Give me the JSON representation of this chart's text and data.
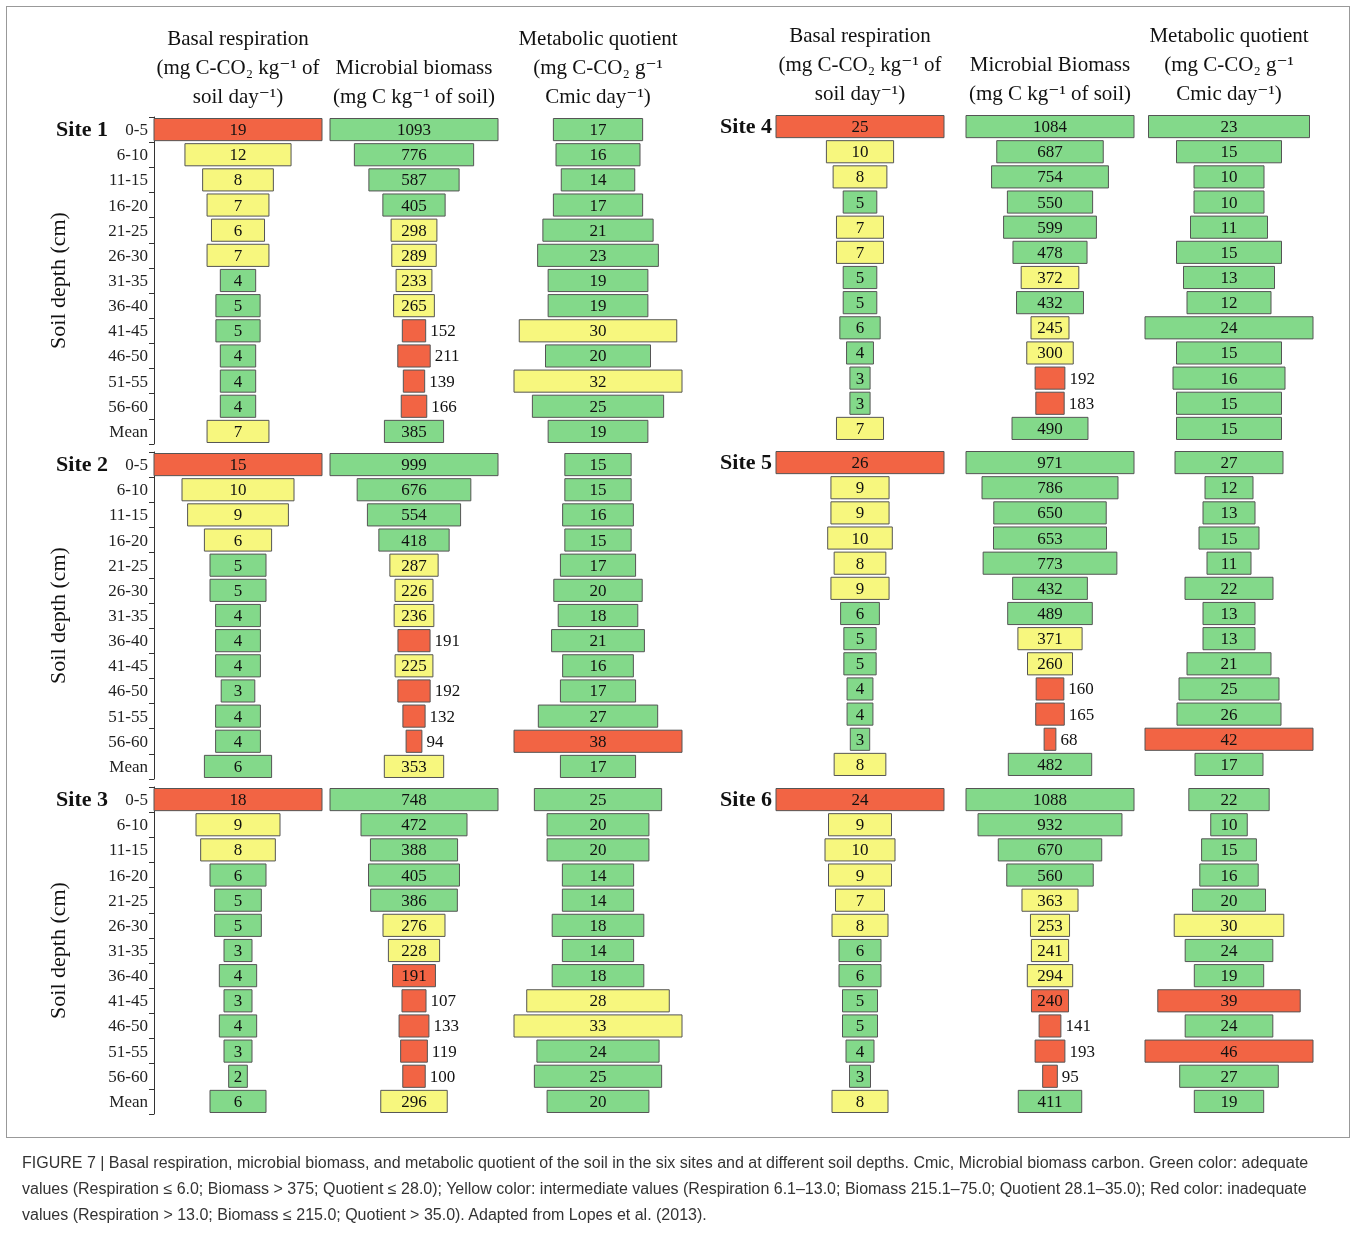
{
  "chart_data": [
    {
      "type": "other",
      "title": "Basal respiration (mg C-CO₂ kg⁻¹ of soil day⁻¹)",
      "subtitle": "Site 1",
      "ylabel": "Soil depth (cm)",
      "data_labels": true,
      "categories": [
        "0-5",
        "6-10",
        "11-15",
        "16-20",
        "21-25",
        "26-30",
        "31-35",
        "36-40",
        "41-45",
        "46-50",
        "51-55",
        "56-60",
        "Mean"
      ],
      "values": [
        19,
        12,
        8,
        7,
        6,
        7,
        4,
        5,
        5,
        4,
        4,
        4,
        7
      ],
      "colors": [
        "#f26444",
        "#f7f77e",
        "#f7f77e",
        "#f7f77e",
        "#f7f77e",
        "#f7f77e",
        "#83d98a",
        "#83d98a",
        "#83d98a",
        "#83d98a",
        "#83d98a",
        "#83d98a",
        "#f7f77e"
      ]
    },
    {
      "type": "other",
      "title": "Microbial biomass (mg C kg⁻¹ of soil)",
      "data_labels": true,
      "categories": [
        null,
        null,
        null,
        null,
        null,
        null,
        null,
        null,
        null,
        null,
        null,
        null,
        null
      ],
      "values": [
        1093,
        776,
        587,
        405,
        298,
        289,
        233,
        265,
        152,
        211,
        139,
        166,
        385
      ],
      "colors": [
        "#83d98a",
        "#83d98a",
        "#83d98a",
        "#83d98a",
        "#f7f77e",
        "#f7f77e",
        "#f7f77e",
        "#f7f77e",
        "#f26444",
        "#f26444",
        "#f26444",
        "#f26444",
        "#83d98a"
      ]
    },
    {
      "type": "other",
      "title": "Metabolic quotient (mg C-CO₂ g⁻¹ Cmic day⁻¹)",
      "data_labels": true,
      "categories": [
        null,
        null,
        null,
        null,
        null,
        null,
        null,
        null,
        null,
        null,
        null,
        null,
        null
      ],
      "values": [
        17,
        16,
        14,
        17,
        21,
        23,
        19,
        19,
        30,
        20,
        32,
        25,
        19
      ],
      "colors": [
        "#83d98a",
        "#83d98a",
        "#83d98a",
        "#83d98a",
        "#83d98a",
        "#83d98a",
        "#83d98a",
        "#83d98a",
        "#f7f77e",
        "#83d98a",
        "#f7f77e",
        "#83d98a",
        "#83d98a"
      ]
    },
    {
      "type": "other",
      "subtitle": "Site 2",
      "ylabel": "Soil depth (cm)",
      "data_labels": true,
      "categories": [
        "0-5",
        "6-10",
        "11-15",
        "16-20",
        "21-25",
        "26-30",
        "31-35",
        "36-40",
        "41-45",
        "46-50",
        "51-55",
        "56-60",
        "Mean"
      ],
      "values": [
        15,
        10,
        9,
        6,
        5,
        5,
        4,
        4,
        4,
        3,
        4,
        4,
        6
      ],
      "colors": [
        "#f26444",
        "#f7f77e",
        "#f7f77e",
        "#f7f77e",
        "#83d98a",
        "#83d98a",
        "#83d98a",
        "#83d98a",
        "#83d98a",
        "#83d98a",
        "#83d98a",
        "#83d98a",
        "#83d98a"
      ]
    },
    {
      "type": "other",
      "data_labels": true,
      "categories": [
        null,
        null,
        null,
        null,
        null,
        null,
        null,
        null,
        null,
        null,
        null,
        null,
        null
      ],
      "values": [
        999,
        676,
        554,
        418,
        287,
        226,
        236,
        191,
        225,
        192,
        132,
        94,
        353
      ],
      "colors": [
        "#83d98a",
        "#83d98a",
        "#83d98a",
        "#83d98a",
        "#f7f77e",
        "#f7f77e",
        "#f7f77e",
        "#f26444",
        "#f7f77e",
        "#f26444",
        "#f26444",
        "#f26444",
        "#f7f77e"
      ]
    },
    {
      "type": "other",
      "data_labels": true,
      "categories": [
        null,
        null,
        null,
        null,
        null,
        null,
        null,
        null,
        null,
        null,
        null,
        null,
        null
      ],
      "values": [
        15,
        15,
        16,
        15,
        17,
        20,
        18,
        21,
        16,
        17,
        27,
        38,
        17
      ],
      "colors": [
        "#83d98a",
        "#83d98a",
        "#83d98a",
        "#83d98a",
        "#83d98a",
        "#83d98a",
        "#83d98a",
        "#83d98a",
        "#83d98a",
        "#83d98a",
        "#83d98a",
        "#f26444",
        "#83d98a"
      ]
    },
    {
      "type": "other",
      "subtitle": "Site 3",
      "ylabel": "Soil depth (cm)",
      "data_labels": true,
      "categories": [
        "0-5",
        "6-10",
        "11-15",
        "16-20",
        "21-25",
        "26-30",
        "31-35",
        "36-40",
        "41-45",
        "46-50",
        "51-55",
        "56-60",
        "Mean"
      ],
      "values": [
        18,
        9,
        8,
        6,
        5,
        5,
        3,
        4,
        3,
        4,
        3,
        2,
        6
      ],
      "colors": [
        "#f26444",
        "#f7f77e",
        "#f7f77e",
        "#83d98a",
        "#83d98a",
        "#83d98a",
        "#83d98a",
        "#83d98a",
        "#83d98a",
        "#83d98a",
        "#83d98a",
        "#83d98a",
        "#83d98a"
      ]
    },
    {
      "type": "other",
      "data_labels": true,
      "categories": [
        null,
        null,
        null,
        null,
        null,
        null,
        null,
        null,
        null,
        null,
        null,
        null,
        null
      ],
      "values": [
        748,
        472,
        388,
        405,
        386,
        276,
        228,
        191,
        107,
        133,
        119,
        100,
        296
      ],
      "colors": [
        "#83d98a",
        "#83d98a",
        "#83d98a",
        "#83d98a",
        "#83d98a",
        "#f7f77e",
        "#f7f77e",
        "#f26444",
        "#f26444",
        "#f26444",
        "#f26444",
        "#f26444",
        "#f7f77e"
      ]
    },
    {
      "type": "other",
      "data_labels": true,
      "categories": [
        null,
        null,
        null,
        null,
        null,
        null,
        null,
        null,
        null,
        null,
        null,
        null,
        null
      ],
      "values": [
        25,
        20,
        20,
        14,
        14,
        18,
        14,
        18,
        28,
        33,
        24,
        25,
        20
      ],
      "colors": [
        "#83d98a",
        "#83d98a",
        "#83d98a",
        "#83d98a",
        "#83d98a",
        "#83d98a",
        "#83d98a",
        "#83d98a",
        "#f7f77e",
        "#f7f77e",
        "#83d98a",
        "#83d98a",
        "#83d98a"
      ]
    },
    {
      "type": "other",
      "title": "Basal respiration (mg C-CO₂ kg⁻¹ of soil day⁻¹)",
      "subtitle": "Site 4",
      "data_labels": true,
      "categories": [
        null,
        null,
        null,
        null,
        null,
        null,
        null,
        null,
        null,
        null,
        null,
        null,
        null
      ],
      "values": [
        25,
        10,
        8,
        5,
        7,
        7,
        5,
        5,
        6,
        4,
        3,
        3,
        7
      ],
      "colors": [
        "#f26444",
        "#f7f77e",
        "#f7f77e",
        "#83d98a",
        "#f7f77e",
        "#f7f77e",
        "#83d98a",
        "#83d98a",
        "#83d98a",
        "#83d98a",
        "#83d98a",
        "#83d98a",
        "#f7f77e"
      ]
    },
    {
      "type": "other",
      "title": "Microbial Biomass (mg C kg⁻¹ of soil)",
      "data_labels": true,
      "categories": [
        null,
        null,
        null,
        null,
        null,
        null,
        null,
        null,
        null,
        null,
        null,
        null,
        null
      ],
      "values": [
        1084,
        687,
        754,
        550,
        599,
        478,
        372,
        432,
        245,
        300,
        192,
        183,
        490
      ],
      "colors": [
        "#83d98a",
        "#83d98a",
        "#83d98a",
        "#83d98a",
        "#83d98a",
        "#83d98a",
        "#f7f77e",
        "#83d98a",
        "#f7f77e",
        "#f7f77e",
        "#f26444",
        "#f26444",
        "#83d98a"
      ]
    },
    {
      "type": "other",
      "title": "Metabolic quotient (mg C-CO₂ g⁻¹ Cmic day⁻¹)",
      "data_labels": true,
      "categories": [
        null,
        null,
        null,
        null,
        null,
        null,
        null,
        null,
        null,
        null,
        null,
        null,
        null
      ],
      "values": [
        23,
        15,
        10,
        10,
        11,
        15,
        13,
        12,
        24,
        15,
        16,
        15,
        15
      ],
      "colors": [
        "#83d98a",
        "#83d98a",
        "#83d98a",
        "#83d98a",
        "#83d98a",
        "#83d98a",
        "#83d98a",
        "#83d98a",
        "#83d98a",
        "#83d98a",
        "#83d98a",
        "#83d98a",
        "#83d98a"
      ]
    },
    {
      "type": "other",
      "subtitle": "Site 5",
      "data_labels": true,
      "categories": [
        null,
        null,
        null,
        null,
        null,
        null,
        null,
        null,
        null,
        null,
        null,
        null,
        null
      ],
      "values": [
        26,
        9,
        9,
        10,
        8,
        9,
        6,
        5,
        5,
        4,
        4,
        3,
        8
      ],
      "colors": [
        "#f26444",
        "#f7f77e",
        "#f7f77e",
        "#f7f77e",
        "#f7f77e",
        "#f7f77e",
        "#83d98a",
        "#83d98a",
        "#83d98a",
        "#83d98a",
        "#83d98a",
        "#83d98a",
        "#f7f77e"
      ]
    },
    {
      "type": "other",
      "data_labels": true,
      "categories": [
        null,
        null,
        null,
        null,
        null,
        null,
        null,
        null,
        null,
        null,
        null,
        null,
        null
      ],
      "values": [
        971,
        786,
        650,
        653,
        773,
        432,
        489,
        371,
        260,
        160,
        165,
        68,
        482
      ],
      "colors": [
        "#83d98a",
        "#83d98a",
        "#83d98a",
        "#83d98a",
        "#83d98a",
        "#83d98a",
        "#83d98a",
        "#f7f77e",
        "#f7f77e",
        "#f26444",
        "#f26444",
        "#f26444",
        "#83d98a"
      ]
    },
    {
      "type": "other",
      "data_labels": true,
      "categories": [
        null,
        null,
        null,
        null,
        null,
        null,
        null,
        null,
        null,
        null,
        null,
        null,
        null
      ],
      "values": [
        27,
        12,
        13,
        15,
        11,
        22,
        13,
        13,
        21,
        25,
        26,
        42,
        17
      ],
      "colors": [
        "#83d98a",
        "#83d98a",
        "#83d98a",
        "#83d98a",
        "#83d98a",
        "#83d98a",
        "#83d98a",
        "#83d98a",
        "#83d98a",
        "#83d98a",
        "#83d98a",
        "#f26444",
        "#83d98a"
      ]
    },
    {
      "type": "other",
      "subtitle": "Site 6",
      "data_labels": true,
      "categories": [
        null,
        null,
        null,
        null,
        null,
        null,
        null,
        null,
        null,
        null,
        null,
        null,
        null
      ],
      "values": [
        24,
        9,
        10,
        9,
        7,
        8,
        6,
        6,
        5,
        5,
        4,
        3,
        8
      ],
      "colors": [
        "#f26444",
        "#f7f77e",
        "#f7f77e",
        "#f7f77e",
        "#f7f77e",
        "#f7f77e",
        "#83d98a",
        "#83d98a",
        "#83d98a",
        "#83d98a",
        "#83d98a",
        "#83d98a",
        "#f7f77e"
      ]
    },
    {
      "type": "other",
      "data_labels": true,
      "categories": [
        null,
        null,
        null,
        null,
        null,
        null,
        null,
        null,
        null,
        null,
        null,
        null,
        null
      ],
      "values": [
        1088,
        932,
        670,
        560,
        363,
        253,
        241,
        294,
        240,
        141,
        193,
        95,
        411
      ],
      "colors": [
        "#83d98a",
        "#83d98a",
        "#83d98a",
        "#83d98a",
        "#f7f77e",
        "#f7f77e",
        "#f7f77e",
        "#f7f77e",
        "#f26444",
        "#f26444",
        "#f26444",
        "#f26444",
        "#83d98a"
      ]
    },
    {
      "type": "other",
      "data_labels": true,
      "categories": [
        null,
        null,
        null,
        null,
        null,
        null,
        null,
        null,
        null,
        null,
        null,
        null,
        null
      ],
      "values": [
        22,
        10,
        15,
        16,
        20,
        30,
        24,
        19,
        39,
        24,
        46,
        27,
        19
      ],
      "colors": [
        "#83d98a",
        "#83d98a",
        "#83d98a",
        "#83d98a",
        "#83d98a",
        "#f7f77e",
        "#83d98a",
        "#83d98a",
        "#f26444",
        "#83d98a",
        "#f26444",
        "#83d98a",
        "#83d98a"
      ],
      "annotations": [
        "FIGURE 7 | Basal respiration, microbial biomass, and metabolic quotient of the soil in the six sites and at different soil depths. Cmic, Microbial biomass carbon. Green color: adequate values (Respiration ≤ 6.0; Biomass > 375; Quotient ≤ 28.0); Yellow color: intermediate values (Respiration 6.1–13.0; Biomass 215.1–75.0; Quotient 28.1–35.0); Red color: inadequate values (Respiration > 13.0; Biomass ≤ 215.0; Quotient > 35.0). Adapted from Lopes et al. (2013)."
      ]
    }
  ]
}
